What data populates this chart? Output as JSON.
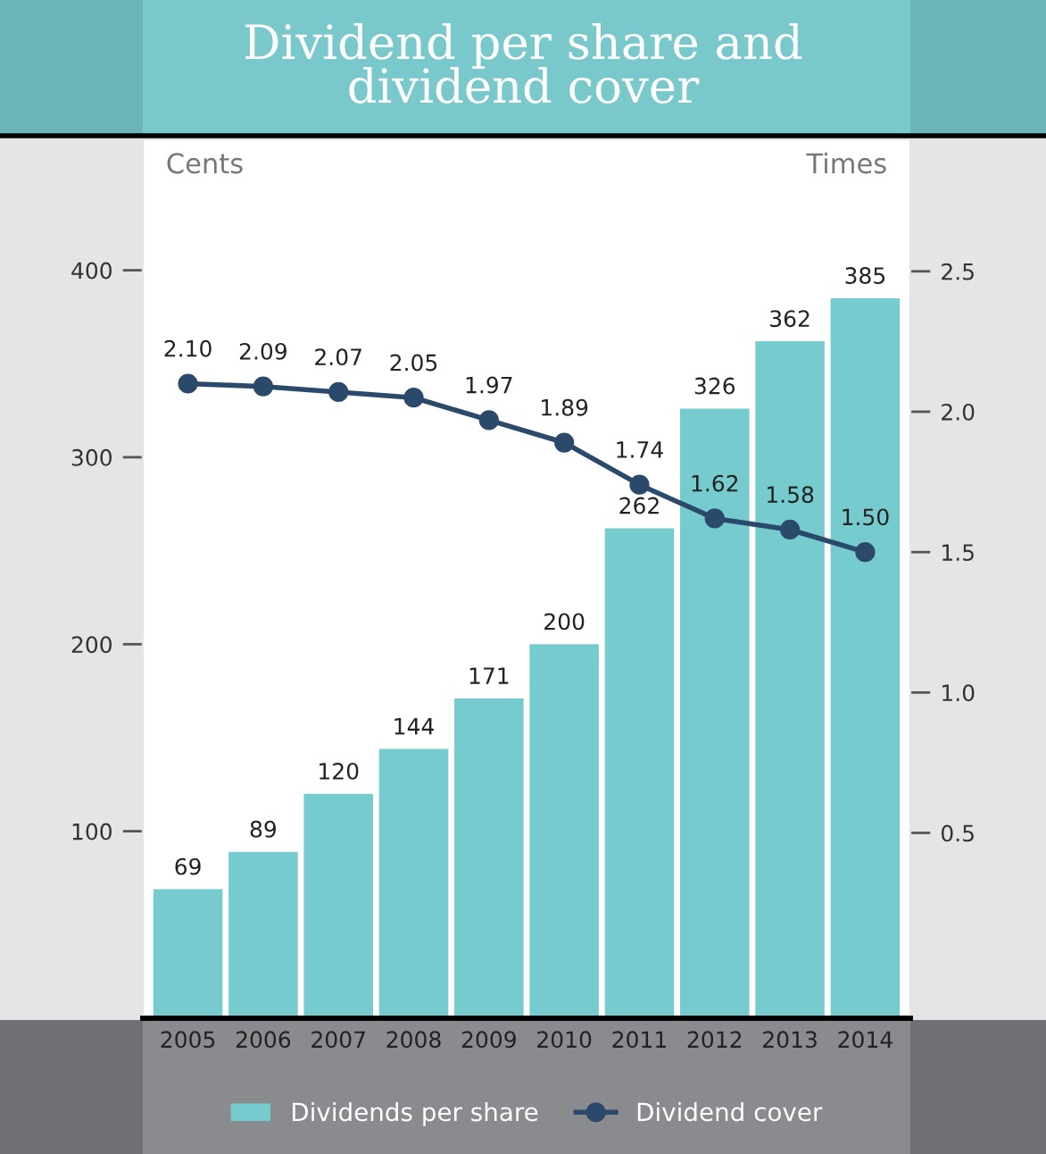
{
  "chart_data": {
    "type": "bar",
    "title": "Dividend per share and\ndividend cover",
    "ylabel": "Cents",
    "y2label": "Times",
    "categories": [
      "2005",
      "2006",
      "2007",
      "2008",
      "2009",
      "2010",
      "2011",
      "2012",
      "2013",
      "2014"
    ],
    "series": [
      {
        "name": "Dividends per share",
        "color": "#76cbcf",
        "values": [
          69,
          89,
          120,
          144,
          171,
          200,
          262,
          326,
          362,
          385
        ]
      },
      {
        "name": "Dividend cover",
        "type": "line",
        "axis": "y2",
        "color": "#2b4a6b",
        "marker": "circle",
        "values": [
          2.1,
          2.09,
          2.07,
          2.05,
          1.97,
          1.89,
          1.74,
          1.62,
          1.58,
          1.5
        ],
        "value_labels": [
          "2.10",
          "2.09",
          "2.07",
          "2.05",
          "1.97",
          "1.89",
          "1.74",
          "1.62",
          "1.58",
          "1.50"
        ]
      }
    ],
    "ylim": [
      0,
      470
    ],
    "yticks": [
      100,
      200,
      300,
      400
    ],
    "y2lim": [
      -0.16,
      2.97
    ],
    "y2ticks": [
      {
        "value": 0.5,
        "label": "0.5"
      },
      {
        "value": 1.0,
        "label": "1.0"
      },
      {
        "value": 1.5,
        "label": "1.5"
      },
      {
        "value": 2.0,
        "label": "2.0"
      },
      {
        "value": 2.5,
        "label": "2.5"
      }
    ],
    "data_labels": true,
    "grid": false,
    "legend": "bottom"
  }
}
